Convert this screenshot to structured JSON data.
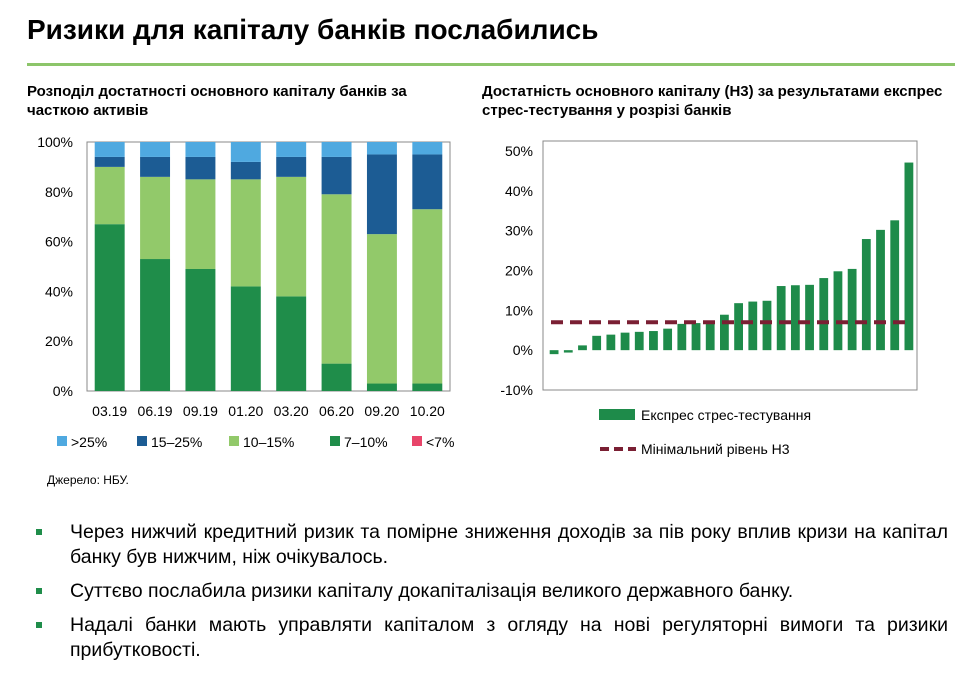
{
  "page": {
    "title": "Ризики для капіталу банків послабились",
    "source": "Джерело: НБУ."
  },
  "bullets": [
    "Через нижчий кредитний ризик та помірне зниження доходів за пів року вплив кризи на капітал банку був нижчим, ніж очікувалось.",
    "Суттєво послабила ризики капіталу докапіталізація великого державного банку.",
    "Надалі банки мають управляти капіталом з огляду на нові регуляторні вимоги та ризики прибутковості."
  ],
  "colors": {
    "gt25": "#4fa9e0",
    "c15_25": "#1c5c94",
    "c10_15": "#92c96a",
    "c7_10": "#1f8d4a",
    "lt7": "#e8456a",
    "stress": "#1e8b4a",
    "min_level": "#7a1f33",
    "rule": "#8cc56a"
  },
  "chart_data": [
    {
      "type": "bar",
      "stacked": true,
      "title": "Розподіл достатності основного капіталу банків за часткою активів",
      "categories": [
        "03.19",
        "06.19",
        "09.19",
        "01.20",
        "03.20",
        "06.20",
        "09.20",
        "10.20"
      ],
      "ylim": [
        0,
        100
      ],
      "yticks": [
        "0%",
        "20%",
        "40%",
        "60%",
        "80%",
        "100%"
      ],
      "series": [
        {
          "name": "<7%",
          "color_key": "lt7",
          "values": [
            0,
            0,
            0,
            0,
            0,
            0,
            0,
            0
          ]
        },
        {
          "name": "7–10%",
          "color_key": "c7_10",
          "values": [
            67,
            53,
            49,
            42,
            38,
            11,
            3,
            3
          ]
        },
        {
          "name": "10–15%",
          "color_key": "c10_15",
          "values": [
            23,
            33,
            36,
            43,
            48,
            68,
            60,
            70
          ]
        },
        {
          "name": "15–25%",
          "color_key": "c15_25",
          "values": [
            4,
            8,
            9,
            7,
            8,
            15,
            32,
            22
          ]
        },
        {
          "name": ">25%",
          "color_key": "gt25",
          "values": [
            6,
            6,
            6,
            8,
            6,
            6,
            5,
            5
          ]
        }
      ],
      "legend_order": [
        ">25%",
        "15–25%",
        "10–15%",
        "7–10%",
        "<7%"
      ],
      "legend": "bottom",
      "grid": false
    },
    {
      "type": "bar",
      "title": "Достатність основного капіталу (Н3) за результатами експрес стрес-тестування у розрізі банків",
      "ylim": [
        -10,
        50
      ],
      "yticks": [
        "-10%",
        "0%",
        "10%",
        "20%",
        "30%",
        "40%",
        "50%"
      ],
      "series": [
        {
          "name": "Експрес стрес-тестування",
          "color_key": "stress",
          "values": [
            -1,
            -0.6,
            1.2,
            3.6,
            3.9,
            4.4,
            4.6,
            4.8,
            5.4,
            6.6,
            6.8,
            6.9,
            8.9,
            11.8,
            12.2,
            12.4,
            16.1,
            16.3,
            16.4,
            18.1,
            19.8,
            20.4,
            27.9,
            30.2,
            32.6,
            47.1
          ]
        },
        {
          "name": "Мінімальний рівень Н3",
          "color_key": "min_level",
          "type": "line",
          "value": 7
        }
      ],
      "legend": "bottom",
      "grid": false
    }
  ]
}
